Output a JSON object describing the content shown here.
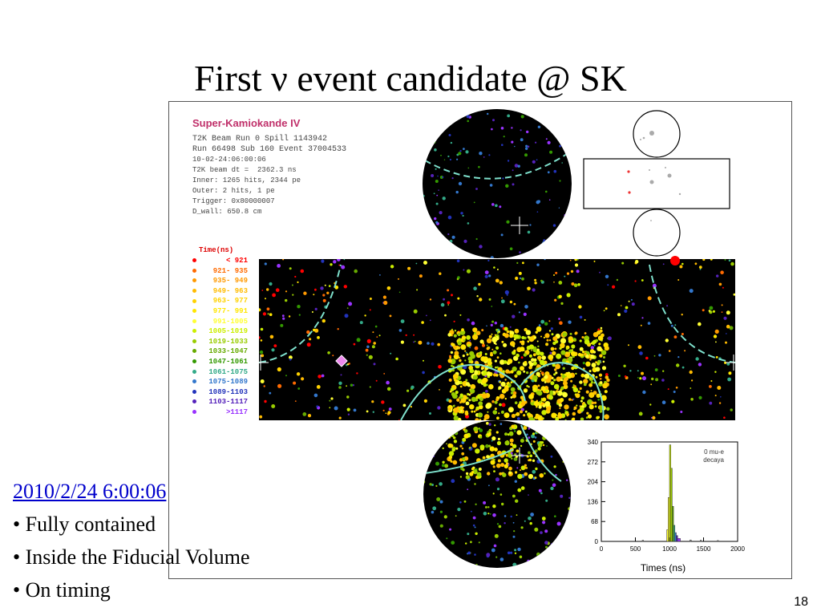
{
  "slide": {
    "title": "First ν event candidate @ SK",
    "page_number": "18"
  },
  "event_info": {
    "detector": "Super-Kamiokande IV",
    "lines": [
      "T2K Beam Run 0 Spill 1143942",
      "Run 66498 Sub 160 Event 37004533"
    ],
    "details": [
      "10-02-24:06:00:06",
      "T2K beam dt =  2362.3 ns",
      "Inner: 1265 hits, 2344 pe",
      "Outer: 2 hits, 1 pe",
      "Trigger: 0x80000007",
      "D_wall: 650.8 cm"
    ]
  },
  "legend": {
    "title": "Time(ns)",
    "items": [
      {
        "label": "< 921",
        "color": "#ff0000"
      },
      {
        "label": "921- 935",
        "color": "#ff6a00"
      },
      {
        "label": "935- 949",
        "color": "#ff9900"
      },
      {
        "label": "949- 963",
        "color": "#ffbb00"
      },
      {
        "label": "963- 977",
        "color": "#ffd200"
      },
      {
        "label": "977- 991",
        "color": "#ffe600"
      },
      {
        "label": "991-1005",
        "color": "#ffff33"
      },
      {
        "label": "1005-1019",
        "color": "#ccee00"
      },
      {
        "label": "1019-1033",
        "color": "#99cc00"
      },
      {
        "label": "1033-1047",
        "color": "#66aa00"
      },
      {
        "label": "1047-1061",
        "color": "#339900"
      },
      {
        "label": "1061-1075",
        "color": "#33aa88"
      },
      {
        "label": "1075-1089",
        "color": "#3377cc"
      },
      {
        "label": "1089-1103",
        "color": "#2233bb"
      },
      {
        "label": "1103-1117",
        "color": "#5522bb"
      },
      {
        "label": ">1117",
        "color": "#9933ff"
      }
    ]
  },
  "histogram": {
    "annotation_line1": "0 mu-e",
    "annotation_line2": "decaya",
    "xlabel": "Times (ns)",
    "x_ticks": [
      "0",
      "500",
      "1000",
      "1500",
      "2000"
    ],
    "y_ticks": [
      "0",
      "68",
      "136",
      "204",
      "272",
      "340"
    ]
  },
  "caption": {
    "date": "2010/2/24 6:00:06",
    "bullets": [
      "• Fully contained",
      "• Inside the Fiducial Volume",
      "• On timing"
    ]
  }
}
